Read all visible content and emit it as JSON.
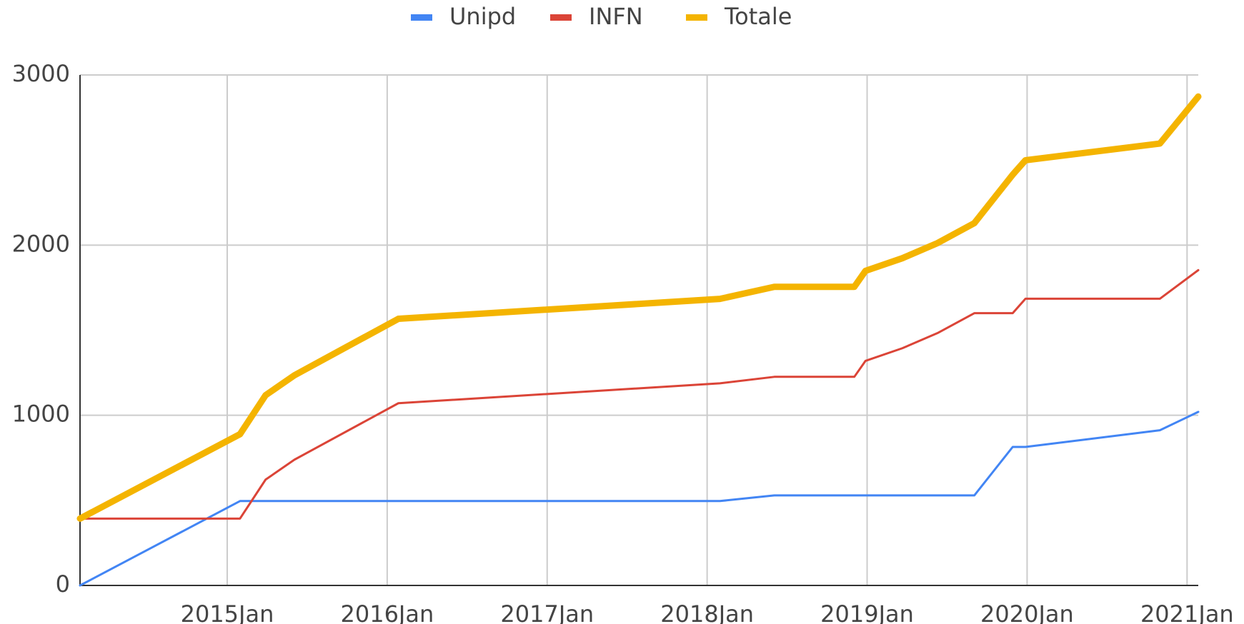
{
  "chart_data": {
    "type": "line",
    "x": [
      2014.08,
      2015.08,
      2015.24,
      2015.42,
      2016.07,
      2018.08,
      2018.42,
      2018.92,
      2018.99,
      2019.22,
      2019.44,
      2019.67,
      2019.91,
      2019.99,
      2020.83,
      2021.07
    ],
    "series": [
      {
        "name": "Unipd",
        "color": "#4285f4",
        "values": [
          0,
          496,
          496,
          496,
          496,
          496,
          529,
          529,
          529,
          529,
          529,
          529,
          814,
          814,
          912,
          1020
        ]
      },
      {
        "name": "INFN",
        "color": "#db4437",
        "values": [
          393,
          393,
          622,
          739,
          1071,
          1188,
          1226,
          1226,
          1320,
          1394,
          1483,
          1600,
          1600,
          1685,
          1685,
          1853
        ]
      },
      {
        "name": "Totale",
        "color": "#f4b400",
        "values": [
          393,
          889,
          1118,
          1235,
          1567,
          1684,
          1755,
          1755,
          1849,
          1923,
          2012,
          2129,
          2414,
          2499,
          2597,
          2873
        ]
      }
    ],
    "xlim": [
      2014.08,
      2021.07
    ],
    "xticks": [
      {
        "value": 2015,
        "label": "2015Jan"
      },
      {
        "value": 2016,
        "label": "2016Jan"
      },
      {
        "value": 2017,
        "label": "2017Jan"
      },
      {
        "value": 2018,
        "label": "2018Jan"
      },
      {
        "value": 2019,
        "label": "2019Jan"
      },
      {
        "value": 2020,
        "label": "2020Jan"
      },
      {
        "value": 2021,
        "label": "2021Jan"
      }
    ],
    "ylim": [
      0,
      3000
    ],
    "yticks": [
      0,
      1000,
      2000,
      3000
    ],
    "grid": true,
    "legend": "top"
  }
}
